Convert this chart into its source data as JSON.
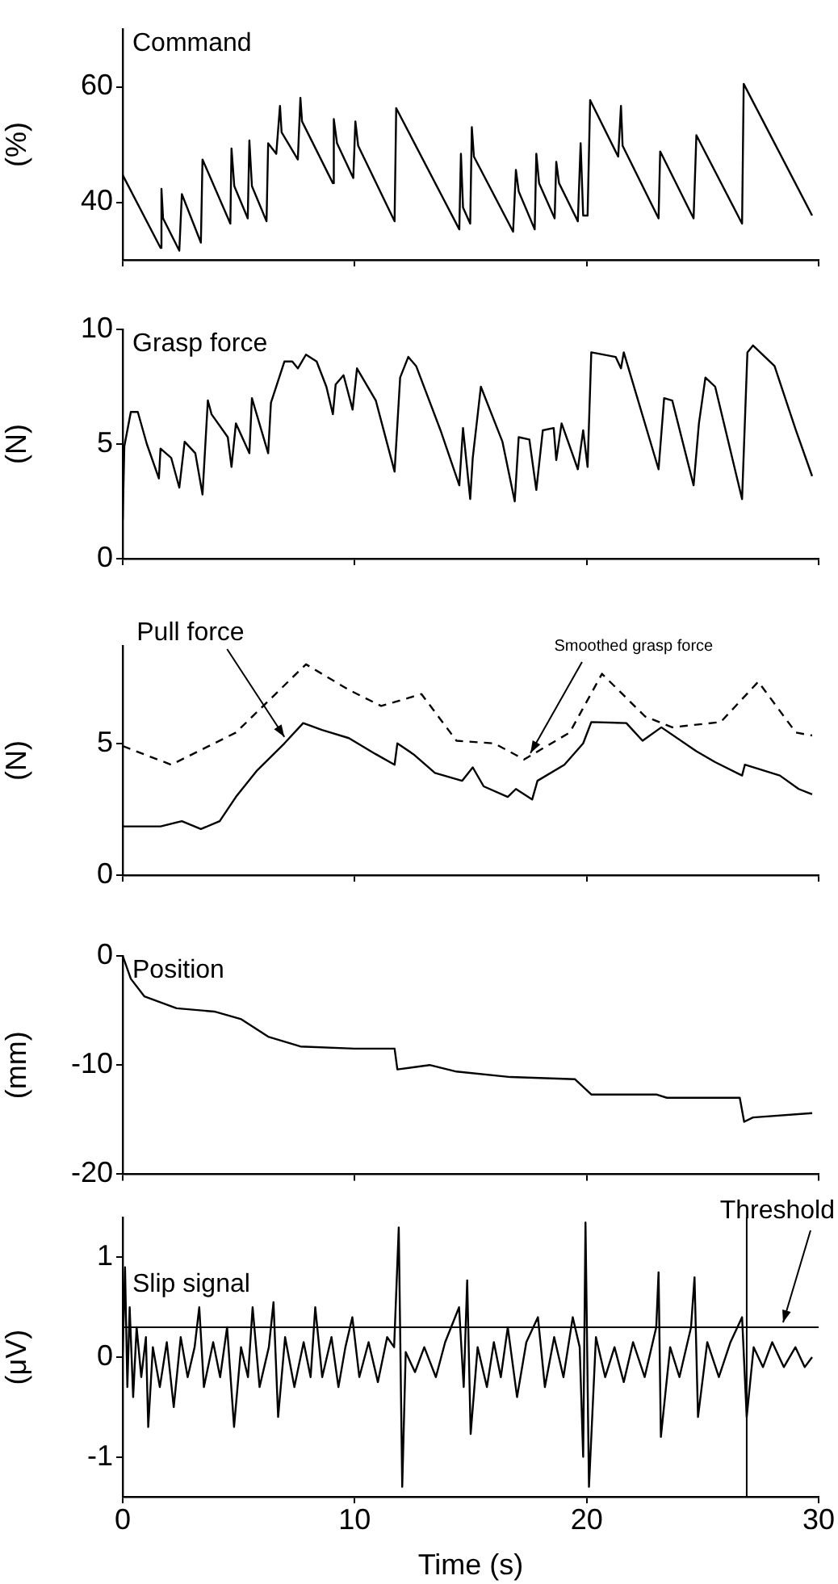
{
  "chart_data": [
    {
      "type": "line",
      "title": "Command",
      "ylabel": "(%)",
      "xlim": [
        0,
        30
      ],
      "xticks": [
        0,
        10,
        20,
        30
      ],
      "ylim": [
        30,
        70
      ],
      "yticks": [
        40,
        60
      ],
      "tick_labels": "y",
      "grid": false,
      "x": [
        0,
        1.63,
        1.67,
        1.74,
        2.44,
        2.55,
        3.37,
        3.44,
        4.64,
        4.69,
        4.81,
        5.39,
        5.46,
        5.57,
        6.2,
        6.27,
        6.62,
        6.78,
        6.85,
        7.55,
        7.66,
        7.73,
        9.06,
        9.1,
        9.24,
        9.94,
        10.03,
        10.15,
        11.72,
        11.79,
        14.51,
        14.58,
        14.67,
        14.98,
        15.05,
        15.14,
        16.83,
        16.95,
        17.07,
        17.76,
        17.83,
        17.95,
        18.62,
        18.69,
        18.81,
        19.62,
        19.74,
        19.85,
        20.04,
        20.15,
        21.36,
        21.48,
        21.55,
        23.1,
        23.17,
        24.61,
        24.73,
        26.7,
        26.77,
        29.72
      ],
      "series": [
        {
          "color": "#000000",
          "values": [
            44.7,
            32.1,
            42.3,
            37.2,
            31.6,
            41.4,
            33,
            47.4,
            36.3,
            49.3,
            42.8,
            37.2,
            50.7,
            42.8,
            36.7,
            50.2,
            48.4,
            56.7,
            52.1,
            47.4,
            58.1,
            54,
            43.3,
            54.4,
            50.2,
            44.2,
            54,
            49.8,
            36.7,
            56.3,
            35.3,
            48.4,
            39.1,
            36.3,
            53,
            47.9,
            34.9,
            45.6,
            41.9,
            35.3,
            48.4,
            43.3,
            37.2,
            47,
            43.3,
            36.7,
            50.2,
            37.7,
            37.7,
            57.7,
            47.9,
            56.7,
            49.8,
            37.2,
            48.8,
            37.2,
            51.6,
            36.3,
            60.5,
            37.7
          ]
        }
      ]
    },
    {
      "type": "line",
      "title": "Grasp force",
      "ylabel": "(N)",
      "xlim": [
        0,
        30
      ],
      "xticks": [
        0,
        10,
        20,
        30
      ],
      "ylim": [
        0,
        10
      ],
      "yticks": [
        0,
        5,
        10
      ],
      "tick_labels": "y",
      "grid": false,
      "x": [
        0,
        0.07,
        0.35,
        0.65,
        1.04,
        1.56,
        1.63,
        2.09,
        2.44,
        2.67,
        3.13,
        3.44,
        3.67,
        3.83,
        4.53,
        4.69,
        4.88,
        5.46,
        5.57,
        6.27,
        6.39,
        6.97,
        7.31,
        7.55,
        7.9,
        8.36,
        8.78,
        9.06,
        9.18,
        9.52,
        9.91,
        10.1,
        10.91,
        11.72,
        11.96,
        12.31,
        12.65,
        13.7,
        14.51,
        14.67,
        14.98,
        15.09,
        15.44,
        16.37,
        16.9,
        17.07,
        17.53,
        17.83,
        18.11,
        18.58,
        18.69,
        18.92,
        19.62,
        19.85,
        20.04,
        20.2,
        21.25,
        21.48,
        21.6,
        23.1,
        23.34,
        23.69,
        24.61,
        24.84,
        25.12,
        25.54,
        26.7,
        26.93,
        27.17,
        28.1,
        29.02,
        29.72
      ],
      "series": [
        {
          "color": "#000000",
          "values": [
            1.7,
            4.9,
            6.4,
            6.4,
            5.0,
            3.5,
            4.8,
            4.4,
            3.1,
            5.1,
            4.6,
            2.8,
            6.9,
            6.3,
            5.3,
            4.0,
            5.9,
            4.6,
            7.0,
            4.6,
            6.8,
            8.6,
            8.6,
            8.3,
            8.9,
            8.6,
            7.5,
            6.3,
            7.6,
            8.0,
            6.5,
            8.3,
            6.9,
            3.8,
            7.9,
            8.8,
            8.4,
            5.6,
            3.2,
            5.7,
            2.6,
            4.4,
            7.5,
            5.1,
            2.5,
            5.3,
            5.2,
            3.0,
            5.6,
            5.7,
            4.3,
            5.9,
            3.9,
            5.6,
            4.0,
            9.0,
            8.8,
            8.3,
            9.0,
            3.9,
            7.0,
            6.9,
            3.2,
            5.9,
            7.9,
            7.5,
            2.6,
            9.0,
            9.3,
            8.4,
            5.6,
            3.6
          ]
        }
      ]
    },
    {
      "type": "line",
      "ylabel": "(N)",
      "xlim": [
        0,
        30
      ],
      "xticks": [
        0,
        10,
        20,
        30
      ],
      "ylim": [
        0,
        8.7
      ],
      "yticks": [
        0,
        5
      ],
      "tick_labels": "y",
      "grid": false,
      "series": [
        {
          "name": "Pull force",
          "color": "#000000",
          "x": [
            0,
            1.63,
            2.55,
            3.37,
            4.18,
            4.88,
            5.8,
            6.97,
            7.78,
            8.59,
            9.75,
            10.91,
            11.72,
            11.84,
            12.53,
            13.46,
            14.63,
            15.09,
            15.56,
            16.6,
            16.95,
            17.65,
            17.88,
            19.04,
            19.85,
            20.2,
            21.71,
            22.41,
            23.22,
            24.73,
            25.54,
            26.7,
            26.82,
            28.33,
            29.14,
            29.72
          ],
          "values": [
            1.85,
            1.85,
            2.05,
            1.75,
            2.05,
            2.97,
            3.98,
            5.0,
            5.77,
            5.51,
            5.2,
            4.59,
            4.19,
            5.0,
            4.59,
            3.88,
            3.58,
            4.09,
            3.37,
            2.97,
            3.27,
            2.87,
            3.58,
            4.19,
            5.0,
            5.81,
            5.77,
            5.1,
            5.61,
            4.7,
            4.29,
            3.78,
            4.19,
            3.78,
            3.27,
            3.07
          ]
        },
        {
          "name": "Smoothed grasp force",
          "color": "#000000",
          "line_style": "dashed",
          "x": [
            0,
            2.09,
            4.88,
            7.9,
            9.75,
            11.14,
            12.88,
            14.39,
            16.02,
            17.3,
            19.27,
            20.66,
            22.52,
            23.69,
            25.78,
            27.4,
            29.02,
            29.72
          ],
          "values": [
            4.9,
            4.19,
            5.41,
            8.0,
            7.03,
            6.42,
            6.87,
            5.1,
            5.0,
            4.39,
            5.41,
            7.64,
            6.02,
            5.61,
            5.81,
            7.34,
            5.41,
            5.3
          ]
        }
      ]
    },
    {
      "type": "line",
      "title": "Position",
      "ylabel": "(mm)",
      "xlim": [
        0,
        30
      ],
      "xticks": [
        0,
        10,
        20,
        30
      ],
      "ylim": [
        -20,
        0
      ],
      "yticks": [
        -20,
        -10,
        0
      ],
      "tick_labels": "y",
      "grid": false,
      "x": [
        0,
        0.35,
        0.93,
        2.32,
        3.95,
        5.11,
        6.27,
        7.66,
        10.0,
        11.72,
        11.84,
        13.23,
        14.39,
        16.72,
        19.5,
        20.2,
        23.0,
        23.46,
        26.6,
        26.79,
        27.17,
        29.72
      ],
      "series": [
        {
          "color": "#000000",
          "values": [
            0,
            -2.1,
            -3.7,
            -4.8,
            -5.1,
            -5.8,
            -7.4,
            -8.3,
            -8.5,
            -8.5,
            -10.4,
            -10.0,
            -10.6,
            -11.1,
            -11.3,
            -12.7,
            -12.7,
            -13.0,
            -13.0,
            -15.2,
            -14.8,
            -14.4
          ]
        }
      ]
    },
    {
      "type": "line",
      "title": "Slip signal",
      "ylabel": "(μV)",
      "xlabel": "Time (s)",
      "xlim": [
        0,
        30
      ],
      "xticks": [
        0,
        10,
        20,
        30
      ],
      "ylim": [
        -1.4,
        1.4
      ],
      "yticks": [
        -1,
        0,
        1
      ],
      "grid": false,
      "ref_lines": [
        {
          "axis": "y",
          "value": 0.3,
          "label": "Threshold"
        },
        {
          "axis": "x",
          "value": 26.9
        }
      ],
      "x": [
        0,
        0.1,
        0.2,
        0.3,
        0.45,
        0.6,
        0.8,
        1.0,
        1.1,
        1.3,
        1.6,
        1.9,
        2.2,
        2.5,
        2.8,
        3.1,
        3.3,
        3.5,
        3.9,
        4.2,
        4.5,
        4.8,
        5.1,
        5.4,
        5.6,
        5.9,
        6.3,
        6.5,
        6.7,
        7.0,
        7.4,
        7.8,
        8.1,
        8.3,
        8.6,
        9.0,
        9.3,
        9.6,
        9.9,
        10.2,
        10.6,
        11.0,
        11.4,
        11.7,
        11.9,
        12.05,
        12.2,
        12.6,
        13.0,
        13.5,
        13.9,
        14.5,
        14.7,
        14.85,
        15.0,
        15.3,
        15.7,
        16.0,
        16.3,
        16.6,
        17.0,
        17.4,
        17.9,
        18.2,
        18.6,
        19.0,
        19.4,
        19.7,
        19.85,
        19.95,
        20.1,
        20.4,
        20.8,
        21.2,
        21.6,
        22.0,
        22.5,
        23.0,
        23.1,
        23.2,
        23.6,
        24.0,
        24.5,
        24.65,
        24.8,
        25.2,
        25.7,
        26.2,
        26.7,
        26.9,
        27.2,
        27.6,
        28.0,
        28.5,
        29.0,
        29.4,
        29.72
      ],
      "series": [
        {
          "color": "#000000",
          "values": [
            0.05,
            0.9,
            -0.3,
            0.5,
            -0.4,
            0.3,
            -0.2,
            0.2,
            -0.7,
            0.1,
            -0.3,
            0.15,
            -0.5,
            0.2,
            -0.2,
            0.1,
            0.5,
            -0.3,
            0.15,
            -0.2,
            0.3,
            -0.7,
            0.1,
            -0.2,
            0.5,
            -0.3,
            0.1,
            0.55,
            -0.6,
            0.2,
            -0.3,
            0.15,
            -0.2,
            0.5,
            -0.2,
            0.2,
            -0.3,
            0.1,
            0.4,
            -0.2,
            0.15,
            -0.25,
            0.2,
            0.1,
            1.3,
            -1.3,
            0.05,
            -0.15,
            0.1,
            -0.2,
            0.15,
            0.5,
            -0.3,
            0.77,
            -0.77,
            0.1,
            -0.3,
            0.15,
            -0.2,
            0.3,
            -0.4,
            0.15,
            0.4,
            -0.3,
            0.2,
            -0.2,
            0.4,
            0.1,
            -1.0,
            1.35,
            -1.3,
            0.2,
            -0.2,
            0.1,
            -0.25,
            0.15,
            -0.2,
            0.3,
            0.85,
            -0.8,
            0.1,
            -0.2,
            0.3,
            0.8,
            -0.6,
            0.15,
            -0.2,
            0.15,
            0.4,
            -0.6,
            0.1,
            -0.1,
            0.15,
            -0.1,
            0.1,
            -0.1,
            0.0
          ]
        }
      ]
    }
  ]
}
